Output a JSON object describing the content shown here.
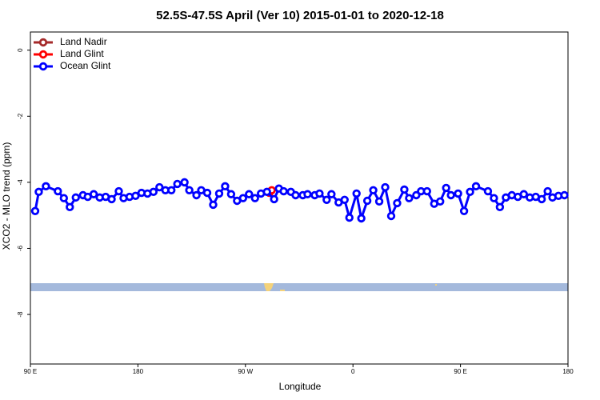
{
  "chart_data": {
    "type": "line",
    "title": "52.5S-47.5S April (Ver 10)   2015-01-01 to 2020-12-18",
    "xlabel": "Longitude",
    "ylabel": "XCO2 - MLO trend (ppm)",
    "xlim": [
      90,
      540
    ],
    "xticks": [
      {
        "value": 90,
        "label": "90 E"
      },
      180,
      {
        "value": 270,
        "label": "90 W"
      },
      {
        "value": 360,
        "label": "0"
      },
      {
        "value": 450,
        "label": "90 E"
      },
      {
        "value": 540,
        "label": "180"
      }
    ],
    "ylim": [
      -9.5,
      0.55
    ],
    "yticks": [
      0,
      -2,
      -4,
      -6,
      -8
    ],
    "legend": "top-left",
    "series": [
      {
        "name": "Land Nadir",
        "color": "#a52a2a",
        "x": [],
        "values": []
      },
      {
        "name": "Land Glint",
        "color": "#ff0000",
        "x": [
          290,
          292
        ],
        "values": [
          -4.32,
          -4.24
        ]
      },
      {
        "name": "Ocean Glint",
        "color": "#0000ff",
        "x": [
          94,
          97,
          103,
          113,
          118,
          123,
          128,
          134,
          138,
          143,
          148,
          153,
          158,
          164,
          168,
          173,
          178,
          183,
          188,
          193,
          198,
          203,
          208,
          213,
          219,
          223,
          229,
          233,
          238,
          243,
          248,
          253,
          258,
          263,
          268,
          273,
          278,
          283,
          288,
          294,
          298,
          302,
          308,
          312,
          318,
          322,
          328,
          332,
          338,
          342,
          348,
          353,
          357,
          363,
          367,
          372,
          377,
          382,
          387,
          392,
          397,
          403,
          407,
          413,
          417,
          422,
          428,
          433,
          438,
          442,
          448,
          453,
          458,
          463,
          473,
          478,
          483,
          488,
          493,
          498,
          503,
          508,
          513,
          518,
          523,
          527,
          532,
          537
        ],
        "values": [
          -4.87,
          -4.29,
          -4.12,
          -4.27,
          -4.48,
          -4.75,
          -4.46,
          -4.39,
          -4.44,
          -4.36,
          -4.46,
          -4.44,
          -4.51,
          -4.27,
          -4.48,
          -4.44,
          -4.41,
          -4.32,
          -4.34,
          -4.29,
          -4.15,
          -4.24,
          -4.24,
          -4.05,
          -4.0,
          -4.24,
          -4.39,
          -4.24,
          -4.32,
          -4.68,
          -4.34,
          -4.12,
          -4.36,
          -4.56,
          -4.48,
          -4.36,
          -4.48,
          -4.34,
          -4.29,
          -4.51,
          -4.19,
          -4.27,
          -4.29,
          -4.39,
          -4.39,
          -4.36,
          -4.39,
          -4.34,
          -4.53,
          -4.36,
          -4.61,
          -4.53,
          -5.07,
          -4.34,
          -5.09,
          -4.56,
          -4.24,
          -4.58,
          -4.15,
          -5.02,
          -4.63,
          -4.22,
          -4.48,
          -4.39,
          -4.27,
          -4.27,
          -4.65,
          -4.58,
          -4.17,
          -4.39,
          -4.34,
          -4.87,
          -4.29,
          -4.12,
          -4.27,
          -4.48,
          -4.75,
          -4.46,
          -4.39,
          -4.44,
          -4.36,
          -4.46,
          -4.44,
          -4.51,
          -4.27,
          -4.46,
          -4.41,
          -4.39
        ]
      }
    ]
  }
}
